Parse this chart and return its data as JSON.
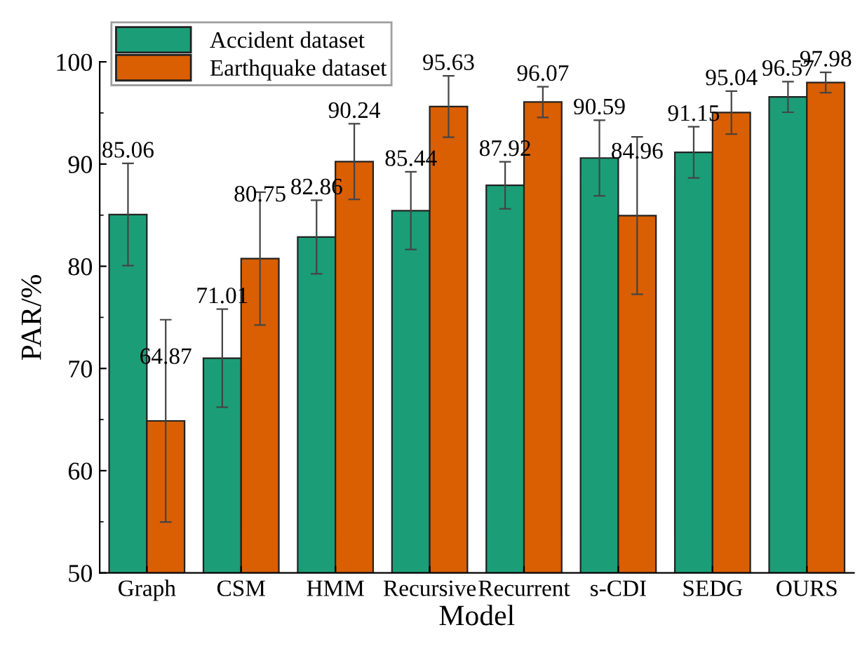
{
  "chart_data": {
    "type": "bar",
    "xlabel": "Model",
    "ylabel": "PAR/%",
    "categories": [
      "Graph",
      "CSM",
      "HMM",
      "Recursive",
      "Recurrent",
      "s-CDI",
      "SEDG",
      "OURS"
    ],
    "series": [
      {
        "name": "Accident dataset",
        "color": "#1b9e77",
        "values": [
          85.06,
          71.01,
          82.86,
          85.44,
          87.92,
          90.59,
          91.15,
          96.57
        ],
        "errors": [
          5.0,
          4.8,
          3.6,
          3.8,
          2.3,
          3.7,
          2.5,
          1.5
        ]
      },
      {
        "name": "Earthquake dataset",
        "color": "#d95f02",
        "values": [
          64.87,
          80.75,
          90.24,
          95.63,
          96.07,
          84.96,
          95.04,
          97.98
        ],
        "errors": [
          9.9,
          6.5,
          3.7,
          3.0,
          1.5,
          7.7,
          2.1,
          1.0
        ]
      }
    ],
    "ylim": [
      50,
      100
    ],
    "yticks": [
      50,
      60,
      70,
      80,
      90,
      100
    ],
    "data_labels": true,
    "legend": "top left",
    "grid": false
  }
}
